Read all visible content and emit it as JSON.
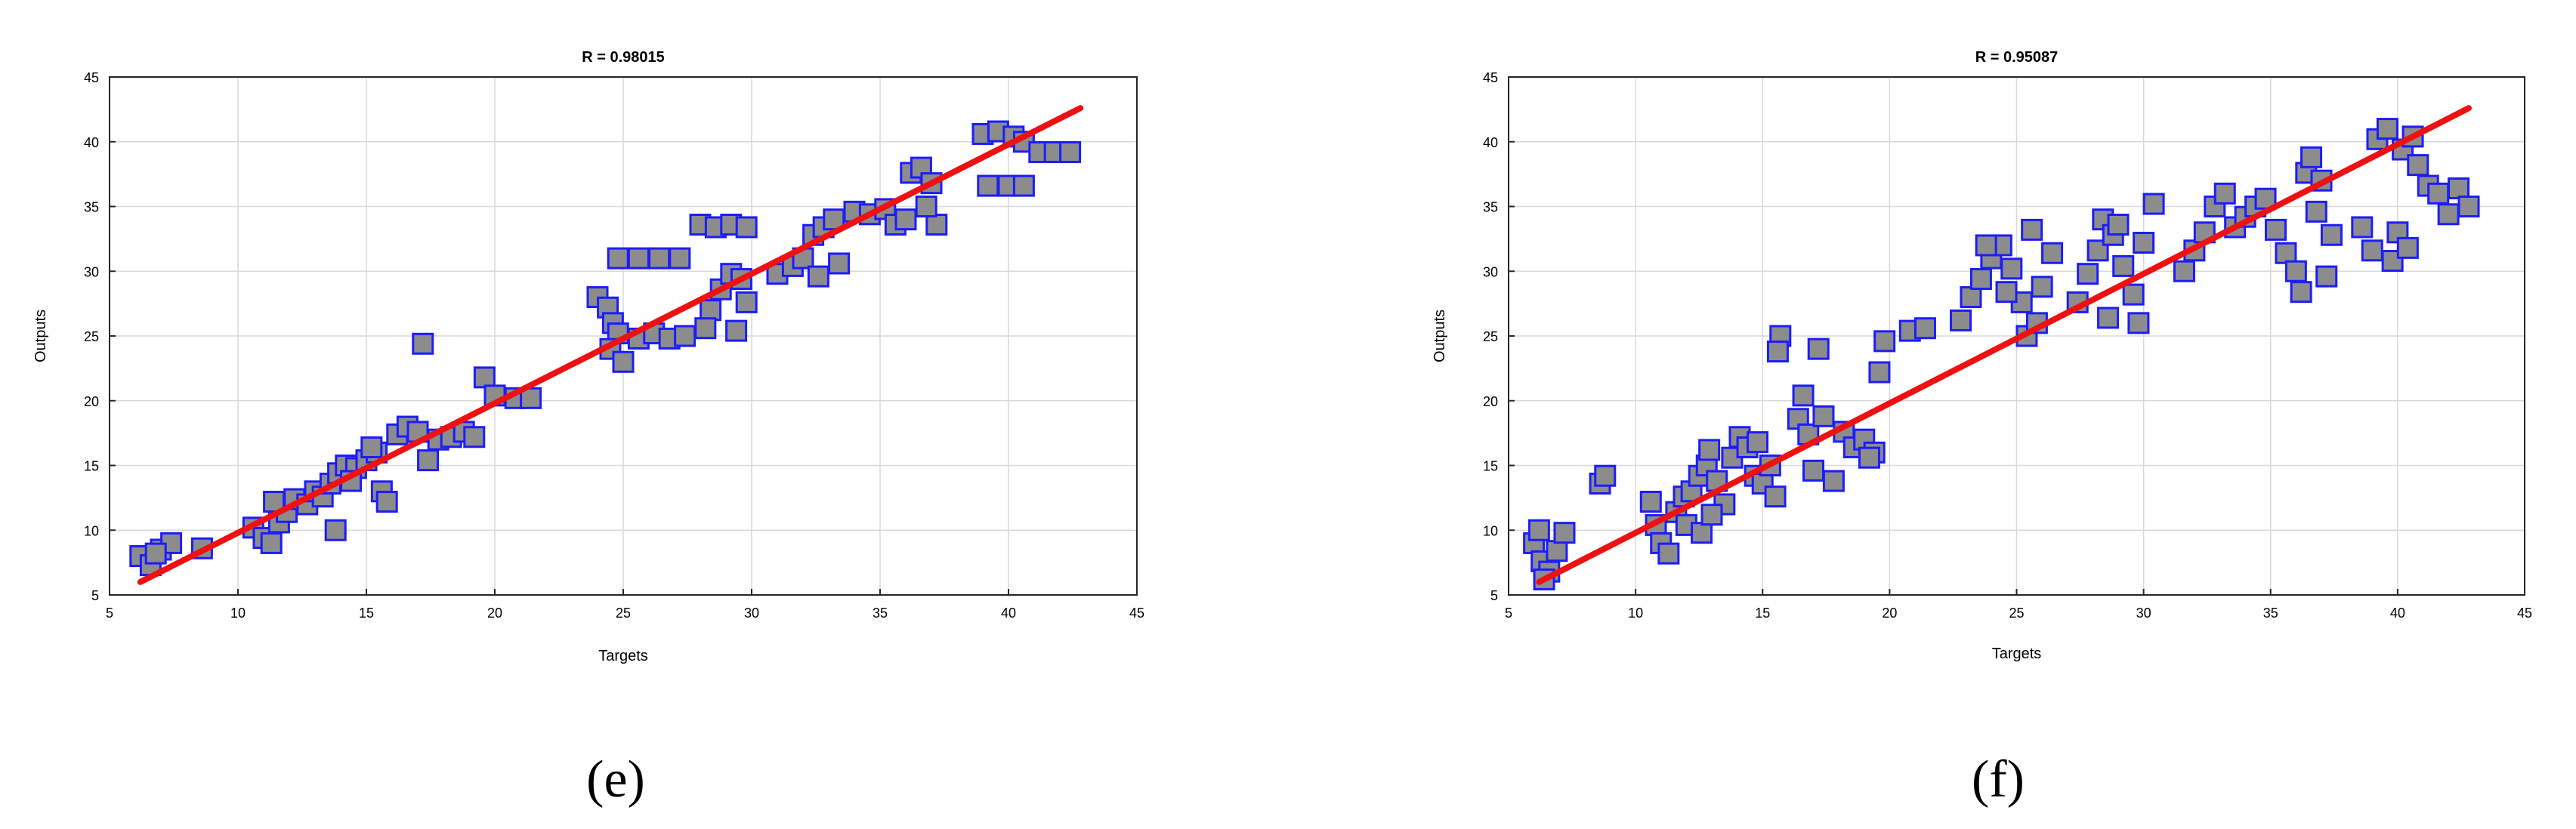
{
  "colors": {
    "marker_fill": "#8c8c8c",
    "marker_edge": "#1c1cff",
    "fit_line": "#ee1111",
    "grid": "#d9d9d9",
    "frame": "#262626"
  },
  "chart_data": [
    {
      "type": "scatter",
      "title": "R = 0.98015",
      "xlabel": "Targets",
      "ylabel": "Outputs",
      "xlim": [
        5,
        45
      ],
      "ylim": [
        5,
        45
      ],
      "xticks": [
        5,
        10,
        15,
        20,
        25,
        30,
        35,
        40,
        45
      ],
      "yticks": [
        5,
        10,
        15,
        20,
        25,
        30,
        35,
        40,
        45
      ],
      "grid": true,
      "caption": "(e)",
      "marker": "square",
      "fit_line": {
        "x": [
          6.2,
          42.8
        ],
        "y": [
          6.0,
          42.6
        ]
      },
      "points": [
        [
          6.2,
          8.0
        ],
        [
          6.6,
          7.3
        ],
        [
          7.0,
          8.5
        ],
        [
          7.4,
          9.0
        ],
        [
          6.8,
          8.2
        ],
        [
          8.6,
          8.6
        ],
        [
          10.6,
          10.2
        ],
        [
          11.0,
          9.4
        ],
        [
          11.3,
          9.0
        ],
        [
          11.6,
          10.6
        ],
        [
          11.9,
          11.4
        ],
        [
          12.2,
          12.4
        ],
        [
          11.4,
          12.2
        ],
        [
          12.7,
          12.0
        ],
        [
          13.0,
          13.0
        ],
        [
          13.3,
          12.6
        ],
        [
          13.6,
          13.6
        ],
        [
          13.9,
          14.4
        ],
        [
          13.8,
          10.0
        ],
        [
          14.2,
          15.0
        ],
        [
          14.6,
          14.8
        ],
        [
          15.0,
          15.4
        ],
        [
          15.4,
          16.0
        ],
        [
          15.6,
          13.0
        ],
        [
          15.8,
          12.2
        ],
        [
          15.2,
          16.4
        ],
        [
          14.4,
          13.8
        ],
        [
          16.2,
          17.4
        ],
        [
          16.6,
          18.0
        ],
        [
          17.0,
          17.6
        ],
        [
          17.4,
          15.4
        ],
        [
          17.2,
          24.4
        ],
        [
          17.8,
          17.0
        ],
        [
          18.3,
          17.2
        ],
        [
          18.8,
          17.6
        ],
        [
          19.2,
          17.2
        ],
        [
          19.6,
          21.8
        ],
        [
          20.0,
          20.4
        ],
        [
          20.8,
          20.2
        ],
        [
          21.4,
          20.2
        ],
        [
          24.0,
          28.0
        ],
        [
          24.4,
          27.2
        ],
        [
          24.6,
          26.0
        ],
        [
          24.8,
          25.2
        ],
        [
          24.5,
          24.0
        ],
        [
          25.0,
          23.0
        ],
        [
          25.6,
          24.8
        ],
        [
          26.2,
          25.2
        ],
        [
          26.8,
          24.8
        ],
        [
          27.4,
          25.0
        ],
        [
          24.8,
          31.0
        ],
        [
          25.6,
          31.0
        ],
        [
          26.4,
          31.0
        ],
        [
          27.2,
          31.0
        ],
        [
          28.0,
          33.6
        ],
        [
          28.6,
          33.4
        ],
        [
          29.2,
          33.6
        ],
        [
          29.8,
          33.4
        ],
        [
          28.4,
          27.0
        ],
        [
          28.8,
          28.6
        ],
        [
          29.2,
          29.8
        ],
        [
          29.6,
          29.4
        ],
        [
          29.8,
          27.6
        ],
        [
          29.4,
          25.4
        ],
        [
          28.2,
          25.6
        ],
        [
          31.0,
          29.8
        ],
        [
          31.6,
          30.4
        ],
        [
          32.0,
          31.0
        ],
        [
          32.4,
          32.8
        ],
        [
          32.8,
          33.4
        ],
        [
          33.2,
          34.0
        ],
        [
          33.4,
          30.6
        ],
        [
          32.6,
          29.6
        ],
        [
          34.0,
          34.6
        ],
        [
          34.6,
          34.4
        ],
        [
          35.2,
          34.8
        ],
        [
          35.6,
          33.6
        ],
        [
          36.0,
          34.0
        ],
        [
          36.2,
          37.6
        ],
        [
          36.6,
          38.0
        ],
        [
          37.0,
          36.8
        ],
        [
          37.2,
          33.6
        ],
        [
          36.8,
          35.0
        ],
        [
          39.0,
          40.6
        ],
        [
          39.6,
          40.8
        ],
        [
          40.2,
          40.4
        ],
        [
          40.6,
          40.0
        ],
        [
          41.2,
          39.2
        ],
        [
          41.8,
          39.2
        ],
        [
          42.4,
          39.2
        ],
        [
          39.2,
          36.6
        ],
        [
          40.0,
          36.6
        ],
        [
          40.6,
          36.6
        ]
      ]
    },
    {
      "type": "scatter",
      "title": "R = 0.95087",
      "xlabel": "Targets",
      "ylabel": "Outputs",
      "xlim": [
        5,
        45
      ],
      "ylim": [
        5,
        45
      ],
      "xticks": [
        5,
        10,
        15,
        20,
        25,
        30,
        35,
        40,
        45
      ],
      "yticks": [
        5,
        10,
        15,
        20,
        25,
        30,
        35,
        40,
        45
      ],
      "grid": true,
      "caption": "(f)",
      "marker": "square",
      "fit_line": {
        "x": [
          6.2,
          42.8
        ],
        "y": [
          6.0,
          42.6
        ]
      },
      "points": [
        [
          6.0,
          9.0
        ],
        [
          6.3,
          7.6
        ],
        [
          6.6,
          6.8
        ],
        [
          6.9,
          8.4
        ],
        [
          6.2,
          10.0
        ],
        [
          7.2,
          9.8
        ],
        [
          6.4,
          6.2
        ],
        [
          8.6,
          13.6
        ],
        [
          8.8,
          14.2
        ],
        [
          10.6,
          12.2
        ],
        [
          10.8,
          10.4
        ],
        [
          11.0,
          9.0
        ],
        [
          11.3,
          8.2
        ],
        [
          11.6,
          11.4
        ],
        [
          11.9,
          12.6
        ],
        [
          12.2,
          13.0
        ],
        [
          12.5,
          14.2
        ],
        [
          12.8,
          15.0
        ],
        [
          12.9,
          16.2
        ],
        [
          13.2,
          13.8
        ],
        [
          13.5,
          12.0
        ],
        [
          13.8,
          15.6
        ],
        [
          14.1,
          17.2
        ],
        [
          14.4,
          16.4
        ],
        [
          14.7,
          14.2
        ],
        [
          15.0,
          13.6
        ],
        [
          15.3,
          15.0
        ],
        [
          15.5,
          12.6
        ],
        [
          15.7,
          25.0
        ],
        [
          15.6,
          23.8
        ],
        [
          12.0,
          10.4
        ],
        [
          12.6,
          9.8
        ],
        [
          14.8,
          16.8
        ],
        [
          13.0,
          11.2
        ],
        [
          16.4,
          18.6
        ],
        [
          16.6,
          20.4
        ],
        [
          16.8,
          17.4
        ],
        [
          17.0,
          14.6
        ],
        [
          17.2,
          24.0
        ],
        [
          17.4,
          18.8
        ],
        [
          17.8,
          13.8
        ],
        [
          18.2,
          17.6
        ],
        [
          18.6,
          16.4
        ],
        [
          19.0,
          17.0
        ],
        [
          19.4,
          16.0
        ],
        [
          19.6,
          22.2
        ],
        [
          19.8,
          24.6
        ],
        [
          19.2,
          15.6
        ],
        [
          20.8,
          25.4
        ],
        [
          21.4,
          25.6
        ],
        [
          22.8,
          26.2
        ],
        [
          23.2,
          28.0
        ],
        [
          23.6,
          29.4
        ],
        [
          24.0,
          31.0
        ],
        [
          24.4,
          32.0
        ],
        [
          24.8,
          30.2
        ],
        [
          25.2,
          27.6
        ],
        [
          25.4,
          25.0
        ],
        [
          25.8,
          26.0
        ],
        [
          26.0,
          28.8
        ],
        [
          26.4,
          31.4
        ],
        [
          25.6,
          33.2
        ],
        [
          23.8,
          32.0
        ],
        [
          24.6,
          28.4
        ],
        [
          27.4,
          27.6
        ],
        [
          27.8,
          29.8
        ],
        [
          28.2,
          31.6
        ],
        [
          28.4,
          34.0
        ],
        [
          28.8,
          32.8
        ],
        [
          29.2,
          30.4
        ],
        [
          29.6,
          28.2
        ],
        [
          29.8,
          26.0
        ],
        [
          29.0,
          33.6
        ],
        [
          30.0,
          32.2
        ],
        [
          28.6,
          26.4
        ],
        [
          30.4,
          35.2
        ],
        [
          31.6,
          30.0
        ],
        [
          32.0,
          31.6
        ],
        [
          32.4,
          33.0
        ],
        [
          32.8,
          35.0
        ],
        [
          33.2,
          36.0
        ],
        [
          33.6,
          33.4
        ],
        [
          34.0,
          34.2
        ],
        [
          34.4,
          35.0
        ],
        [
          34.8,
          35.6
        ],
        [
          35.2,
          33.2
        ],
        [
          35.6,
          31.4
        ],
        [
          36.0,
          30.0
        ],
        [
          36.2,
          28.4
        ],
        [
          36.4,
          37.6
        ],
        [
          36.6,
          38.8
        ],
        [
          37.0,
          37.0
        ],
        [
          37.2,
          29.6
        ],
        [
          37.4,
          32.8
        ],
        [
          36.8,
          34.6
        ],
        [
          38.6,
          33.4
        ],
        [
          39.0,
          31.6
        ],
        [
          39.2,
          40.2
        ],
        [
          39.6,
          41.0
        ],
        [
          39.8,
          30.8
        ],
        [
          40.0,
          33.0
        ],
        [
          40.2,
          39.4
        ],
        [
          40.6,
          40.4
        ],
        [
          40.8,
          38.2
        ],
        [
          41.2,
          36.6
        ],
        [
          41.6,
          36.0
        ],
        [
          42.0,
          34.4
        ],
        [
          42.4,
          36.4
        ],
        [
          42.8,
          35.0
        ],
        [
          40.4,
          31.8
        ]
      ]
    }
  ]
}
